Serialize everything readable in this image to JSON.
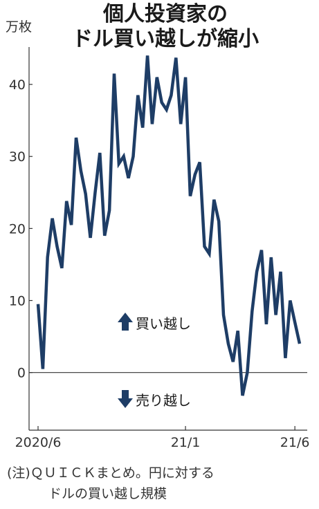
{
  "chart_data": {
    "type": "line",
    "title_lines": [
      "個人投資家の",
      "ドル買い越しが縮小"
    ],
    "unit": "万枚",
    "ylim": [
      -8,
      45
    ],
    "yticks": [
      0,
      10,
      20,
      30,
      40
    ],
    "x_tick_labels": [
      {
        "label": "2020/6",
        "index": 0
      },
      {
        "label": "21/1",
        "index": 31
      },
      {
        "label": "21/6",
        "index": 54
      }
    ],
    "series": [
      {
        "color": "#1e3d66",
        "values": [
          9.5,
          0.5,
          16.0,
          21.4,
          17.5,
          14.5,
          23.8,
          20.5,
          32.6,
          28.0,
          24.8,
          18.7,
          25.0,
          30.5,
          19.0,
          22.5,
          41.5,
          29.0,
          30.0,
          27.0,
          30.0,
          38.5,
          34.0,
          44.0,
          34.5,
          41.0,
          37.5,
          36.5,
          38.5,
          43.7,
          34.5,
          41.0,
          24.5,
          27.5,
          29.2,
          17.5,
          16.5,
          24.0,
          21.0,
          8.0,
          4.0,
          1.5,
          5.8,
          -3.2,
          0.0,
          8.5,
          14.0,
          17.0,
          6.7,
          16.0,
          8.0,
          14.0,
          2.0,
          10.0,
          7.0,
          4.0
        ]
      }
    ],
    "annotations": [
      {
        "arrow": "up",
        "text": "買い越し"
      },
      {
        "arrow": "down",
        "text": "売り越し"
      }
    ],
    "grid": false
  },
  "note_lines": [
    "(注)ＱＵＩＣＫまとめ。円に対する",
    "ドルの買い越し規模"
  ]
}
